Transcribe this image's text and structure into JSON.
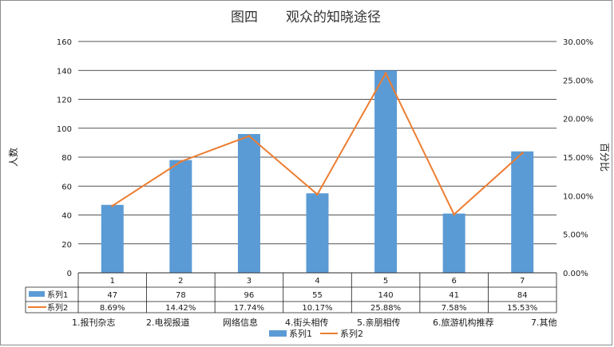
{
  "chart_data": {
    "type": "bar",
    "title_left": "图四",
    "title_right": "观众的知晓途径",
    "ylabel": "人数",
    "ylabel_right": "百分比",
    "ylim": [
      0,
      160
    ],
    "yticks": [
      "0",
      "20",
      "40",
      "60",
      "80",
      "100",
      "120",
      "140",
      "160"
    ],
    "ylim_right": [
      0,
      0.3
    ],
    "yticks_right": [
      "0.00%",
      "5.00%",
      "10.00%",
      "15.00%",
      "20.00%",
      "25.00%",
      "30.00%"
    ],
    "categories": [
      "1",
      "2",
      "3",
      "4",
      "5",
      "6",
      "7"
    ],
    "series": [
      {
        "name": "系列1",
        "type": "bar",
        "color": "#5b9bd5",
        "values": [
          47,
          78,
          96,
          55,
          140,
          41,
          84
        ],
        "labels": [
          "47",
          "78",
          "96",
          "55",
          "140",
          "41",
          "84"
        ]
      },
      {
        "name": "系列2",
        "type": "line",
        "axis": "right",
        "color": "#ed7d31",
        "values": [
          0.0869,
          0.1442,
          0.1774,
          0.1017,
          0.2588,
          0.0758,
          0.1553
        ],
        "labels": [
          "8.69%",
          "14.42%",
          "17.74%",
          "10.17%",
          "25.88%",
          "7.58%",
          "15.53%"
        ]
      }
    ],
    "grid": true,
    "data_table": true,
    "legend_position": "bottom",
    "category_notes": [
      "1.报刊杂志",
      "2.电视报道",
      "网络信息",
      "4.街头相传",
      "5.亲朋相传",
      "6.旅游机构推荐",
      "7.其他"
    ]
  }
}
